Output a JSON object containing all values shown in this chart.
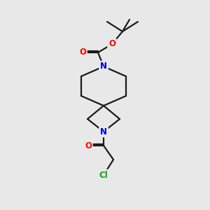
{
  "bg_color": "#e8e8e8",
  "atom_colors": {
    "N": "#0000cc",
    "O": "#ff0000",
    "Cl": "#00aa00"
  },
  "bond_color": "#1a1a1a",
  "bond_width": 1.6,
  "font_size_atom": 8.5,
  "figsize": [
    3.0,
    3.0
  ],
  "dpi": 100
}
